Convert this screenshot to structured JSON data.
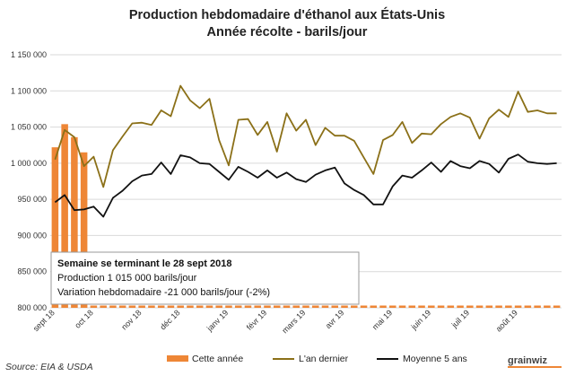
{
  "chart_data": {
    "type": "bar+line",
    "title": "Production hebdomadaire d'éthanol aux États-Unis",
    "subtitle": "Année récolte - barils/jour",
    "ylim": [
      800000,
      1150000
    ],
    "yticks": [
      800000,
      850000,
      900000,
      950000,
      1000000,
      1050000,
      1100000,
      1150000
    ],
    "ytick_labels": [
      "800 000",
      "850 000",
      "900 000",
      "950 000",
      "1 000 000",
      "1 050 000",
      "1 100 000",
      "1 150 000"
    ],
    "grid": "horizontal",
    "week_count": 53,
    "x_ticks": [
      {
        "week": 0,
        "label": "sept 18"
      },
      {
        "week": 4,
        "label": "oct 18"
      },
      {
        "week": 9,
        "label": "nov 18"
      },
      {
        "week": 13,
        "label": "déc 18"
      },
      {
        "week": 18,
        "label": "janv 19"
      },
      {
        "week": 22,
        "label": "févr 19"
      },
      {
        "week": 26,
        "label": "mars 19"
      },
      {
        "week": 30,
        "label": "avr 19"
      },
      {
        "week": 35,
        "label": "mai 19"
      },
      {
        "week": 39,
        "label": "juin 19"
      },
      {
        "week": 43,
        "label": "juil 19"
      },
      {
        "week": 48,
        "label": "août 19"
      }
    ],
    "series": [
      {
        "name": "Cette année",
        "kind": "bar",
        "color": "#ee8636",
        "values": [
          1022000,
          1054000,
          1036000,
          1015000
        ]
      },
      {
        "name": "L'an dernier",
        "kind": "line",
        "color": "#8b7018",
        "values": [
          1005000,
          1046000,
          1036000,
          996000,
          1009000,
          967000,
          1018000,
          1037000,
          1055000,
          1056000,
          1053000,
          1073000,
          1065000,
          1107000,
          1087000,
          1076000,
          1089000,
          1032000,
          997000,
          1060000,
          1061000,
          1039000,
          1057000,
          1016000,
          1069000,
          1045000,
          1060000,
          1025000,
          1049000,
          1038000,
          1038000,
          1031000,
          1008000,
          985000,
          1032000,
          1039000,
          1057000,
          1028000,
          1041000,
          1040000,
          1054000,
          1064000,
          1069000,
          1063000,
          1034000,
          1062000,
          1074000,
          1064000,
          1099000,
          1071000,
          1073000,
          1069000,
          1069000
        ]
      },
      {
        "name": "Moyenne 5 ans",
        "kind": "line",
        "color": "#111111",
        "values": [
          946000,
          956000,
          935000,
          936000,
          940000,
          926000,
          952000,
          962000,
          975000,
          983000,
          985000,
          1001000,
          985000,
          1011000,
          1008000,
          1000000,
          999000,
          988000,
          977000,
          995000,
          988000,
          980000,
          990000,
          980000,
          987000,
          978000,
          974000,
          984000,
          990000,
          994000,
          972000,
          963000,
          956000,
          943000,
          943000,
          968000,
          983000,
          980000,
          990000,
          1001000,
          988000,
          1003000,
          996000,
          993000,
          1003000,
          999000,
          987000,
          1006000,
          1012000,
          1002000,
          1000000,
          999000,
          1000000
        ]
      }
    ],
    "annotation": {
      "title": "Semaine se terminant le 28 sept 2018",
      "lines": [
        "Production 1 015 000 barils/jour",
        "Variation hebdomadaire -21 000 barils/jour (-2%)"
      ]
    }
  },
  "legend": {
    "this_year": "Cette année",
    "last_year": "L'an dernier",
    "five_year_avg": "Moyenne 5 ans"
  },
  "source": "Source: EIA & USDA",
  "logo": {
    "text": "grainwiz"
  },
  "colors": {
    "bar": "#ee8636",
    "last_year": "#8b7018",
    "avg": "#111111",
    "grid": "#d9d9d9",
    "border": "#a6a6a6"
  }
}
